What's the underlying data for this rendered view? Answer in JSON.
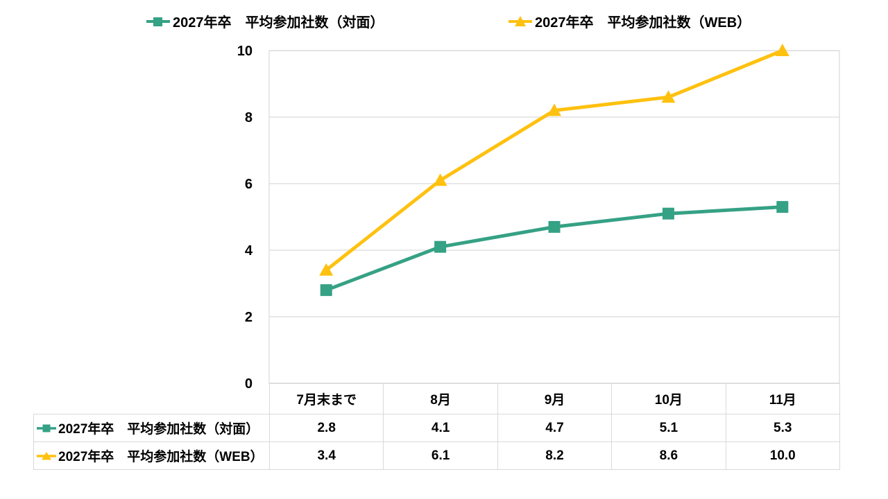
{
  "chart_data": {
    "type": "line",
    "title": "",
    "categories": [
      "7月末まで",
      "8月",
      "9月",
      "10月",
      "11月"
    ],
    "series": [
      {
        "name": "2027年卒　平均参加社数（対面）",
        "values": [
          2.8,
          4.1,
          4.7,
          5.1,
          5.3
        ],
        "color": "#35A185",
        "marker": "square"
      },
      {
        "name": "2027年卒　平均参加社数（WEB）",
        "values": [
          3.4,
          6.1,
          8.2,
          8.6,
          10.0
        ],
        "color": "#FFC110",
        "marker": "triangle"
      }
    ],
    "ylim": [
      0,
      10
    ],
    "yticks": [
      0,
      2,
      4,
      6,
      8,
      10
    ],
    "grid": true,
    "legend_position": "top",
    "data_table_shown": true,
    "value_decimals": 1
  },
  "colors": {
    "grid": "#d9d9d9",
    "plot_border": "#d9d9d9",
    "table_border": "#d9d9d9",
    "text": "#000000",
    "background": "#ffffff"
  }
}
